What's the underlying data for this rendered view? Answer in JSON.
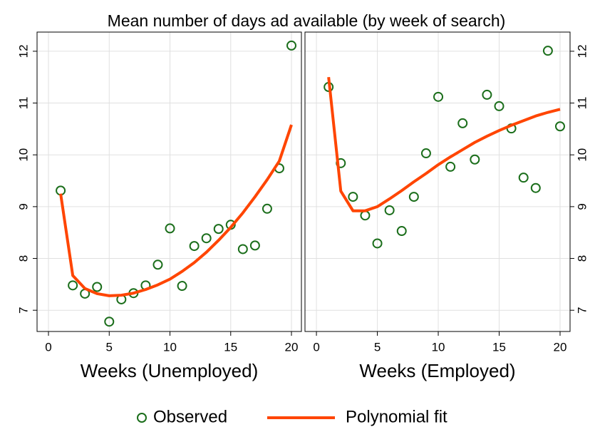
{
  "title": "Mean number of days ad available (by week of search)",
  "legend_position": "bottom",
  "chart_data": [
    {
      "type": "scatter",
      "xlabel": "Weeks (Unemployed)",
      "yaxis_side": "left",
      "grid": true,
      "xlim": [
        -0.94,
        20.82
      ],
      "ylim": [
        6.59,
        12.37
      ],
      "xticks": [
        0,
        5,
        10,
        15,
        20
      ],
      "yticks": [
        7,
        8,
        9,
        10,
        11,
        12
      ],
      "x": [
        1,
        2,
        3,
        4,
        5,
        6,
        7,
        8,
        9,
        10,
        11,
        12,
        13,
        14,
        15,
        16,
        17,
        18,
        19,
        20
      ],
      "series": [
        {
          "name": "Observed",
          "type": "scatter",
          "color": "#1b6e1b",
          "values": [
            9.31,
            7.48,
            7.32,
            7.45,
            6.78,
            7.21,
            7.33,
            7.48,
            7.88,
            8.58,
            7.47,
            8.24,
            8.39,
            8.57,
            8.65,
            8.18,
            8.25,
            8.96,
            9.74,
            12.11
          ]
        },
        {
          "name": "Polynomial fit",
          "type": "line",
          "color": "#ff4500",
          "values": [
            9.25,
            7.67,
            7.42,
            7.32,
            7.28,
            7.29,
            7.33,
            7.4,
            7.49,
            7.6,
            7.75,
            7.92,
            8.12,
            8.35,
            8.6,
            8.88,
            9.19,
            9.52,
            9.88,
            10.58
          ]
        }
      ]
    },
    {
      "type": "scatter",
      "xlabel": "Weeks (Employed)",
      "yaxis_side": "right",
      "grid": true,
      "xlim": [
        -0.94,
        20.82
      ],
      "ylim": [
        6.59,
        12.37
      ],
      "xticks": [
        0,
        5,
        10,
        15,
        20
      ],
      "yticks": [
        7,
        8,
        9,
        10,
        11,
        12
      ],
      "x": [
        1,
        2,
        3,
        4,
        5,
        6,
        7,
        8,
        9,
        10,
        11,
        12,
        13,
        14,
        15,
        16,
        17,
        18,
        19,
        20
      ],
      "series": [
        {
          "type": "scatter",
          "color": "#1b6e1b",
          "values": [
            11.31,
            9.84,
            9.19,
            8.83,
            8.29,
            8.93,
            8.53,
            9.19,
            10.03,
            11.12,
            9.77,
            10.61,
            9.91,
            11.16,
            10.94,
            10.51,
            9.56,
            9.36,
            12.01,
            10.55
          ]
        },
        {
          "type": "line",
          "color": "#ff4500",
          "values": [
            11.5,
            9.3,
            8.92,
            8.92,
            9.0,
            9.15,
            9.31,
            9.48,
            9.64,
            9.81,
            9.96,
            10.1,
            10.24,
            10.36,
            10.47,
            10.57,
            10.66,
            10.75,
            10.82,
            10.88
          ]
        }
      ]
    }
  ]
}
